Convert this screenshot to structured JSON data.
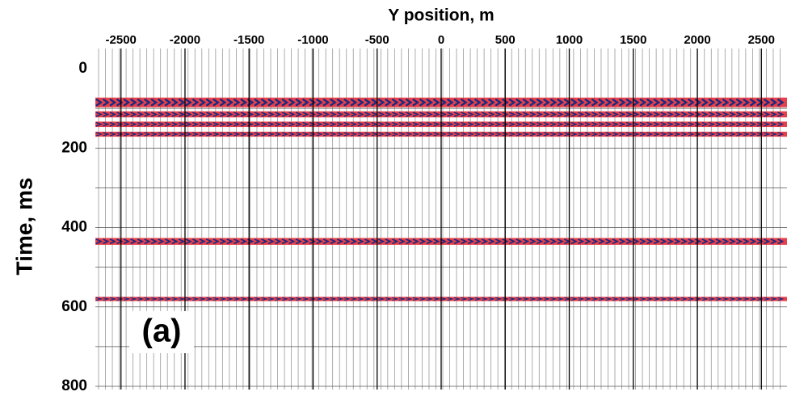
{
  "chart_data": {
    "type": "wiggle",
    "title": "Y position, m",
    "y_label": "Time, ms",
    "annotation": "(a)",
    "xlim": [
      -2700,
      2700
    ],
    "xticks": [
      -2500,
      -2000,
      -1500,
      -1000,
      -500,
      0,
      500,
      1000,
      1500,
      2000,
      2500
    ],
    "ylim": [
      0,
      800
    ],
    "yticks": [
      0,
      200,
      400,
      600,
      800
    ],
    "ygrid": [
      100,
      200,
      300,
      400,
      500,
      600,
      700,
      800
    ],
    "events": [
      {
        "time": 85,
        "amplitude": 1.0
      },
      {
        "time": 115,
        "amplitude": 0.5
      },
      {
        "time": 140,
        "amplitude": 0.4
      },
      {
        "time": 165,
        "amplitude": 0.35
      },
      {
        "time": 435,
        "amplitude": 0.6
      },
      {
        "time": 580,
        "amplitude": 0.25
      }
    ],
    "trace_color": "#9a9a9a",
    "positive_color": "#e0202a",
    "negative_color": "#1a2a80"
  }
}
